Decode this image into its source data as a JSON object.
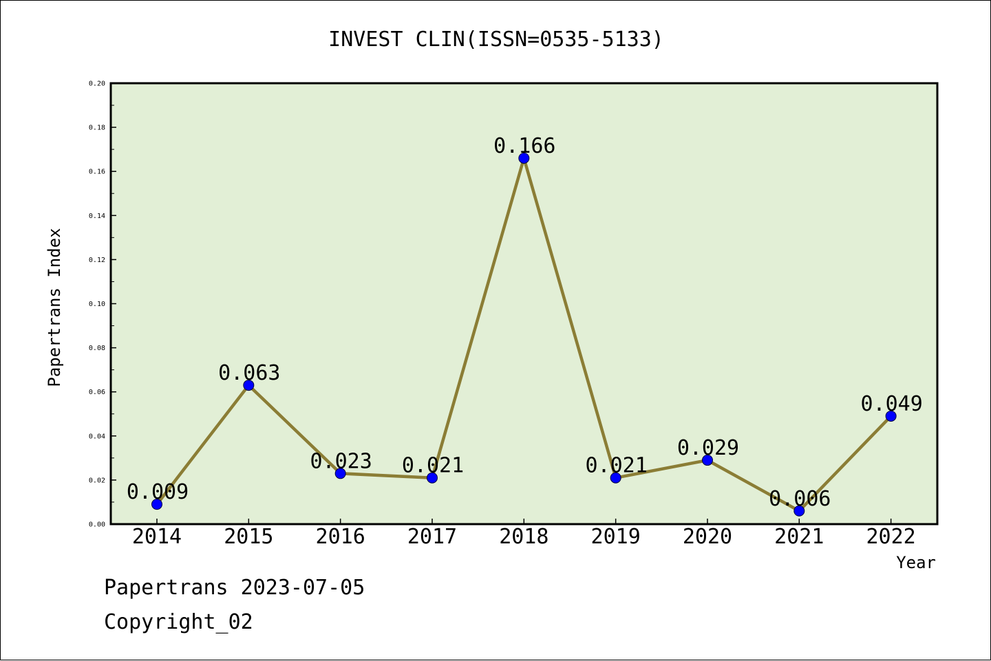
{
  "chart_data": {
    "type": "line",
    "title": "INVEST CLIN(ISSN=0535-5133)",
    "xlabel": "Year",
    "ylabel": "Papertrans Index",
    "categories": [
      "2014",
      "2015",
      "2016",
      "2017",
      "2018",
      "2019",
      "2020",
      "2021",
      "2022"
    ],
    "values": [
      0.009,
      0.063,
      0.023,
      0.021,
      0.166,
      0.021,
      0.029,
      0.006,
      0.049
    ],
    "data_labels": [
      "0.009",
      "0.063",
      "0.023",
      "0.021",
      "0.166",
      "0.021",
      "0.029",
      "0.006",
      "0.049"
    ],
    "ylim": [
      0,
      0.2
    ],
    "yticks": [
      "0.00",
      "0.02",
      "0.04",
      "0.06",
      "0.08",
      "0.10",
      "0.12",
      "0.14",
      "0.16",
      "0.18",
      "0.20"
    ],
    "grid": false,
    "legend": "none",
    "colors": {
      "plot_background": "#e2efd6",
      "line": "#8b7d35",
      "marker": "#0000ff",
      "axis": "#000000"
    }
  },
  "footer": {
    "line1": "Papertrans 2023-07-05",
    "line2": "Copyright_02"
  }
}
